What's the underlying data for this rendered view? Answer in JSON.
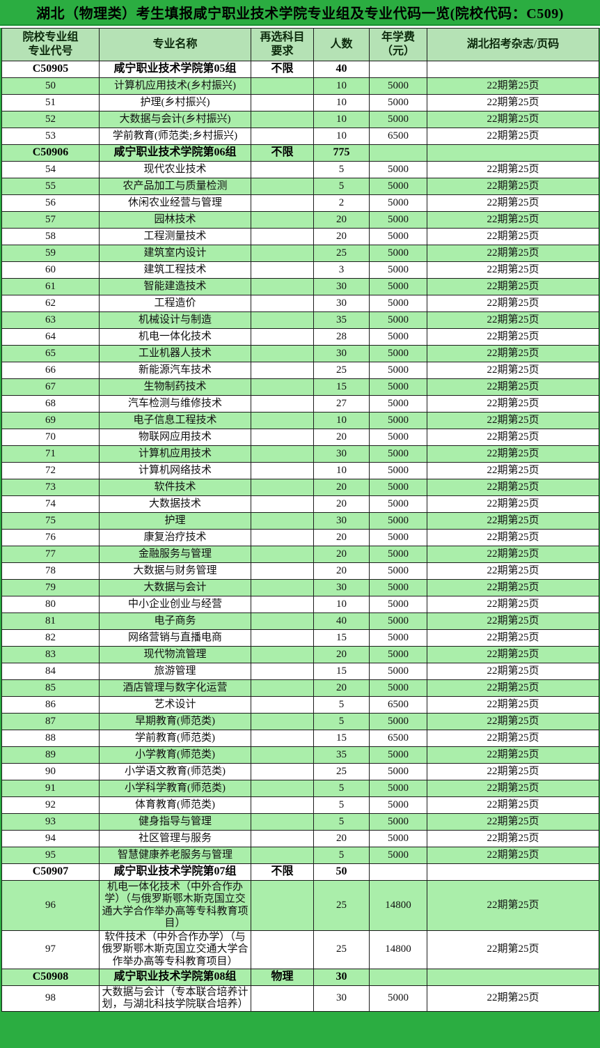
{
  "title": "湖北（物理类）考生填报咸宁职业技术学院专业组及专业代码一览(院校代码：C509)",
  "colors": {
    "page_background_green": "#2bad41",
    "header_row_green": "#b5e2b5",
    "zebra_row_green": "#aaeeaa",
    "grid_border": "#1c1c1c"
  },
  "table": {
    "columns": [
      "院校专业组\n专业代号",
      "专业名称",
      "再选科目\n要求",
      "人数",
      "年学费\n（元）",
      "湖北招考杂志/页码"
    ],
    "rows": [
      {
        "group": true,
        "code": "C50905",
        "name": "咸宁职业技术学院第05组",
        "subject": "不限",
        "count": "40",
        "fee": "",
        "magazine": ""
      },
      {
        "group": false,
        "code": "50",
        "name": "计算机应用技术(乡村振兴)",
        "subject": "",
        "count": "10",
        "fee": "5000",
        "magazine": "22期第25页"
      },
      {
        "group": false,
        "code": "51",
        "name": "护理(乡村振兴)",
        "subject": "",
        "count": "10",
        "fee": "5000",
        "magazine": "22期第25页"
      },
      {
        "group": false,
        "code": "52",
        "name": "大数据与会计(乡村振兴)",
        "subject": "",
        "count": "10",
        "fee": "5000",
        "magazine": "22期第25页"
      },
      {
        "group": false,
        "code": "53",
        "name": "学前教育(师范类;乡村振兴)",
        "subject": "",
        "count": "10",
        "fee": "6500",
        "magazine": "22期第25页"
      },
      {
        "group": true,
        "code": "C50906",
        "name": "咸宁职业技术学院第06组",
        "subject": "不限",
        "count": "775",
        "fee": "",
        "magazine": ""
      },
      {
        "group": false,
        "code": "54",
        "name": "现代农业技术",
        "subject": "",
        "count": "5",
        "fee": "5000",
        "magazine": "22期第25页"
      },
      {
        "group": false,
        "code": "55",
        "name": "农产品加工与质量检测",
        "subject": "",
        "count": "5",
        "fee": "5000",
        "magazine": "22期第25页"
      },
      {
        "group": false,
        "code": "56",
        "name": "休闲农业经营与管理",
        "subject": "",
        "count": "2",
        "fee": "5000",
        "magazine": "22期第25页"
      },
      {
        "group": false,
        "code": "57",
        "name": "园林技术",
        "subject": "",
        "count": "20",
        "fee": "5000",
        "magazine": "22期第25页"
      },
      {
        "group": false,
        "code": "58",
        "name": "工程测量技术",
        "subject": "",
        "count": "20",
        "fee": "5000",
        "magazine": "22期第25页"
      },
      {
        "group": false,
        "code": "59",
        "name": "建筑室内设计",
        "subject": "",
        "count": "25",
        "fee": "5000",
        "magazine": "22期第25页"
      },
      {
        "group": false,
        "code": "60",
        "name": "建筑工程技术",
        "subject": "",
        "count": "3",
        "fee": "5000",
        "magazine": "22期第25页"
      },
      {
        "group": false,
        "code": "61",
        "name": "智能建造技术",
        "subject": "",
        "count": "30",
        "fee": "5000",
        "magazine": "22期第25页"
      },
      {
        "group": false,
        "code": "62",
        "name": "工程造价",
        "subject": "",
        "count": "30",
        "fee": "5000",
        "magazine": "22期第25页"
      },
      {
        "group": false,
        "code": "63",
        "name": "机械设计与制造",
        "subject": "",
        "count": "35",
        "fee": "5000",
        "magazine": "22期第25页"
      },
      {
        "group": false,
        "code": "64",
        "name": "机电一体化技术",
        "subject": "",
        "count": "28",
        "fee": "5000",
        "magazine": "22期第25页"
      },
      {
        "group": false,
        "code": "65",
        "name": "工业机器人技术",
        "subject": "",
        "count": "30",
        "fee": "5000",
        "magazine": "22期第25页"
      },
      {
        "group": false,
        "code": "66",
        "name": "新能源汽车技术",
        "subject": "",
        "count": "25",
        "fee": "5000",
        "magazine": "22期第25页"
      },
      {
        "group": false,
        "code": "67",
        "name": "生物制药技术",
        "subject": "",
        "count": "15",
        "fee": "5000",
        "magazine": "22期第25页"
      },
      {
        "group": false,
        "code": "68",
        "name": "汽车检测与维修技术",
        "subject": "",
        "count": "27",
        "fee": "5000",
        "magazine": "22期第25页"
      },
      {
        "group": false,
        "code": "69",
        "name": "电子信息工程技术",
        "subject": "",
        "count": "10",
        "fee": "5000",
        "magazine": "22期第25页"
      },
      {
        "group": false,
        "code": "70",
        "name": "物联网应用技术",
        "subject": "",
        "count": "20",
        "fee": "5000",
        "magazine": "22期第25页"
      },
      {
        "group": false,
        "code": "71",
        "name": "计算机应用技术",
        "subject": "",
        "count": "30",
        "fee": "5000",
        "magazine": "22期第25页"
      },
      {
        "group": false,
        "code": "72",
        "name": "计算机网络技术",
        "subject": "",
        "count": "10",
        "fee": "5000",
        "magazine": "22期第25页"
      },
      {
        "group": false,
        "code": "73",
        "name": "软件技术",
        "subject": "",
        "count": "20",
        "fee": "5000",
        "magazine": "22期第25页"
      },
      {
        "group": false,
        "code": "74",
        "name": "大数据技术",
        "subject": "",
        "count": "20",
        "fee": "5000",
        "magazine": "22期第25页"
      },
      {
        "group": false,
        "code": "75",
        "name": "护理",
        "subject": "",
        "count": "30",
        "fee": "5000",
        "magazine": "22期第25页"
      },
      {
        "group": false,
        "code": "76",
        "name": "康复治疗技术",
        "subject": "",
        "count": "20",
        "fee": "5000",
        "magazine": "22期第25页"
      },
      {
        "group": false,
        "code": "77",
        "name": "金融服务与管理",
        "subject": "",
        "count": "20",
        "fee": "5000",
        "magazine": "22期第25页"
      },
      {
        "group": false,
        "code": "78",
        "name": "大数据与财务管理",
        "subject": "",
        "count": "20",
        "fee": "5000",
        "magazine": "22期第25页"
      },
      {
        "group": false,
        "code": "79",
        "name": "大数据与会计",
        "subject": "",
        "count": "30",
        "fee": "5000",
        "magazine": "22期第25页"
      },
      {
        "group": false,
        "code": "80",
        "name": "中小企业创业与经营",
        "subject": "",
        "count": "10",
        "fee": "5000",
        "magazine": "22期第25页"
      },
      {
        "group": false,
        "code": "81",
        "name": "电子商务",
        "subject": "",
        "count": "40",
        "fee": "5000",
        "magazine": "22期第25页"
      },
      {
        "group": false,
        "code": "82",
        "name": "网络营销与直播电商",
        "subject": "",
        "count": "15",
        "fee": "5000",
        "magazine": "22期第25页"
      },
      {
        "group": false,
        "code": "83",
        "name": "现代物流管理",
        "subject": "",
        "count": "20",
        "fee": "5000",
        "magazine": "22期第25页"
      },
      {
        "group": false,
        "code": "84",
        "name": "旅游管理",
        "subject": "",
        "count": "15",
        "fee": "5000",
        "magazine": "22期第25页"
      },
      {
        "group": false,
        "code": "85",
        "name": "酒店管理与数字化运营",
        "subject": "",
        "count": "20",
        "fee": "5000",
        "magazine": "22期第25页"
      },
      {
        "group": false,
        "code": "86",
        "name": "艺术设计",
        "subject": "",
        "count": "5",
        "fee": "6500",
        "magazine": "22期第25页"
      },
      {
        "group": false,
        "code": "87",
        "name": "早期教育(师范类)",
        "subject": "",
        "count": "5",
        "fee": "5000",
        "magazine": "22期第25页"
      },
      {
        "group": false,
        "code": "88",
        "name": "学前教育(师范类)",
        "subject": "",
        "count": "15",
        "fee": "6500",
        "magazine": "22期第25页"
      },
      {
        "group": false,
        "code": "89",
        "name": "小学教育(师范类)",
        "subject": "",
        "count": "35",
        "fee": "5000",
        "magazine": "22期第25页"
      },
      {
        "group": false,
        "code": "90",
        "name": "小学语文教育(师范类)",
        "subject": "",
        "count": "25",
        "fee": "5000",
        "magazine": "22期第25页"
      },
      {
        "group": false,
        "code": "91",
        "name": "小学科学教育(师范类)",
        "subject": "",
        "count": "5",
        "fee": "5000",
        "magazine": "22期第25页"
      },
      {
        "group": false,
        "code": "92",
        "name": "体育教育(师范类)",
        "subject": "",
        "count": "5",
        "fee": "5000",
        "magazine": "22期第25页"
      },
      {
        "group": false,
        "code": "93",
        "name": "健身指导与管理",
        "subject": "",
        "count": "5",
        "fee": "5000",
        "magazine": "22期第25页"
      },
      {
        "group": false,
        "code": "94",
        "name": "社区管理与服务",
        "subject": "",
        "count": "20",
        "fee": "5000",
        "magazine": "22期第25页"
      },
      {
        "group": false,
        "code": "95",
        "name": "智慧健康养老服务与管理",
        "subject": "",
        "count": "5",
        "fee": "5000",
        "magazine": "22期第25页"
      },
      {
        "group": true,
        "code": "C50907",
        "name": "咸宁职业技术学院第07组",
        "subject": "不限",
        "count": "50",
        "fee": "",
        "magazine": ""
      },
      {
        "group": false,
        "code": "96",
        "name": "机电一体化技术（中外合作办学）（与俄罗斯鄂木斯克国立交通大学合作举办高等专科教育项目）",
        "subject": "",
        "count": "25",
        "fee": "14800",
        "magazine": "22期第25页"
      },
      {
        "group": false,
        "code": "97",
        "name": "软件技术（中外合作办学）（与俄罗斯鄂木斯克国立交通大学合作举办高等专科教育项目）",
        "subject": "",
        "count": "25",
        "fee": "14800",
        "magazine": "22期第25页"
      },
      {
        "group": true,
        "code": "C50908",
        "name": "咸宁职业技术学院第08组",
        "subject": "物理",
        "count": "30",
        "fee": "",
        "magazine": ""
      },
      {
        "group": false,
        "code": "98",
        "name": "大数据与会计（专本联合培养计划，与湖北科技学院联合培养）",
        "subject": "",
        "count": "30",
        "fee": "5000",
        "magazine": "22期第25页"
      }
    ]
  }
}
